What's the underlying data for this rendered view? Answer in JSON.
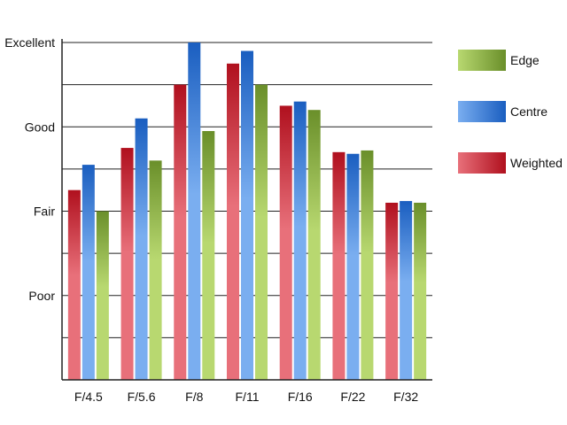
{
  "chart_data": {
    "type": "bar",
    "categories": [
      "F/4.5",
      "F/5.6",
      "F/8",
      "F/11",
      "F/16",
      "F/22",
      "F/32"
    ],
    "series": [
      {
        "name": "Weighted",
        "values": [
          2.25,
          2.75,
          3.5,
          3.75,
          3.25,
          2.7,
          2.1
        ],
        "colors": {
          "light": "#e8707a",
          "dark": "#b0101e"
        }
      },
      {
        "name": "Centre",
        "values": [
          2.55,
          3.1,
          4.0,
          3.9,
          3.3,
          2.68,
          2.12
        ],
        "colors": {
          "light": "#7aaef0",
          "dark": "#1a5ec0"
        }
      },
      {
        "name": "Edge",
        "values": [
          2.0,
          2.6,
          2.95,
          3.5,
          3.2,
          2.72,
          2.1
        ],
        "colors": {
          "light": "#b8d870",
          "dark": "#6a8f2a"
        }
      }
    ],
    "y_tick_labels": [
      "Poor",
      "Fair",
      "Good",
      "Excellent"
    ],
    "y_tick_values": [
      1,
      2,
      3,
      4
    ],
    "ylim": [
      0,
      4
    ],
    "grid": "horizontal",
    "legend_position": "right",
    "legend_order": [
      "Edge",
      "Centre",
      "Weighted"
    ]
  }
}
